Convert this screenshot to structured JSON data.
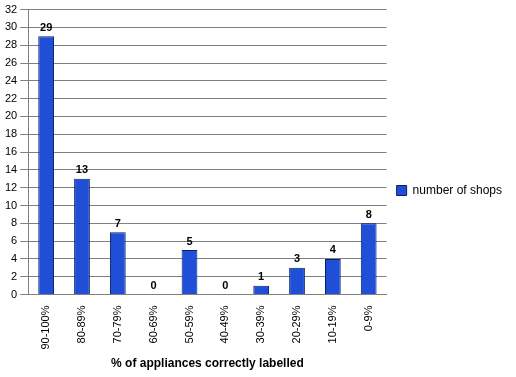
{
  "chart_data": {
    "type": "bar",
    "x_label": "% of appliances correctly labelled",
    "categories": [
      "90-100%",
      "80-89%",
      "70-79%",
      "60-69%",
      "50-59%",
      "40-49%",
      "30-39%",
      "20-29%",
      "10-19%",
      "0-9%"
    ],
    "series": [
      {
        "name": "number of shops",
        "color": "#1f4fd6",
        "values": [
          29,
          13,
          7,
          0,
          5,
          0,
          1,
          3,
          4,
          8
        ]
      }
    ],
    "ylim": [
      0,
      32
    ],
    "yticks": [
      0,
      2,
      4,
      6,
      8,
      10,
      12,
      14,
      16,
      18,
      20,
      22,
      24,
      26,
      28,
      30,
      32
    ],
    "grid": true,
    "legend": "right",
    "data_labels": true
  }
}
